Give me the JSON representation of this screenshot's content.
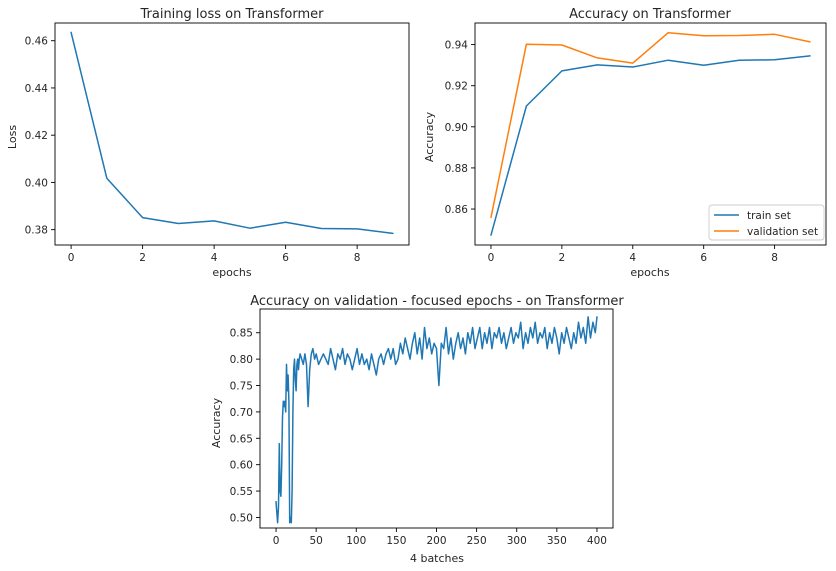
{
  "chart_data": [
    {
      "type": "line",
      "title": "Training loss on Transformer",
      "xlabel": "epochs",
      "ylabel": "Loss",
      "xlim": [
        -0.45,
        9.45
      ],
      "ylim": [
        0.3735,
        0.4675
      ],
      "xticks": [
        0,
        2,
        4,
        6,
        8
      ],
      "xtick_labels": [
        "0",
        "2",
        "4",
        "6",
        "8"
      ],
      "yticks": [
        0.38,
        0.4,
        0.42,
        0.44,
        0.46
      ],
      "ytick_labels": [
        "0.38",
        "0.40",
        "0.42",
        "0.44",
        "0.46"
      ],
      "legend": null,
      "grid": false,
      "x": [
        0,
        1,
        2,
        3,
        4,
        5,
        6,
        7,
        8,
        9
      ],
      "series": [
        {
          "values": [
            0.4635,
            0.4018,
            0.3851,
            0.3826,
            0.3837,
            0.3806,
            0.3831,
            0.3805,
            0.3803,
            0.3784
          ],
          "color": "#1f77b4"
        }
      ]
    },
    {
      "type": "line",
      "title": "Accuracy on Transformer",
      "xlabel": "epochs",
      "ylabel": "Accuracy",
      "xlim": [
        -0.45,
        9.45
      ],
      "ylim": [
        0.8425,
        0.9505
      ],
      "xticks": [
        0,
        2,
        4,
        6,
        8
      ],
      "xtick_labels": [
        "0",
        "2",
        "4",
        "6",
        "8"
      ],
      "yticks": [
        0.86,
        0.88,
        0.9,
        0.92,
        0.94
      ],
      "ytick_labels": [
        "0.86",
        "0.88",
        "0.90",
        "0.92",
        "0.94"
      ],
      "legend": "lower-right",
      "grid": false,
      "x": [
        0,
        1,
        2,
        3,
        4,
        5,
        6,
        7,
        8,
        9
      ],
      "series": [
        {
          "name": "train set",
          "values": [
            0.8473,
            0.9101,
            0.9272,
            0.9301,
            0.9291,
            0.9324,
            0.9299,
            0.9324,
            0.9326,
            0.9345
          ],
          "color": "#1f77b4"
        },
        {
          "name": "validation set",
          "values": [
            0.856,
            0.9402,
            0.9398,
            0.9335,
            0.931,
            0.9458,
            0.9443,
            0.9444,
            0.945,
            0.9413
          ],
          "color": "#ff7f0e"
        }
      ]
    },
    {
      "type": "line",
      "title": "Accuracy on validation - focused epochs - on Transformer",
      "xlabel": "4 batches",
      "ylabel": "Accuracy",
      "xlim": [
        -20,
        420
      ],
      "ylim": [
        0.48,
        0.895
      ],
      "xticks": [
        0,
        50,
        100,
        150,
        200,
        250,
        300,
        350,
        400
      ],
      "xtick_labels": [
        "0",
        "50",
        "100",
        "150",
        "200",
        "250",
        "300",
        "350",
        "400"
      ],
      "yticks": [
        0.5,
        0.55,
        0.6,
        0.65,
        0.7,
        0.75,
        0.8,
        0.85
      ],
      "ytick_labels": [
        "0.50",
        "0.55",
        "0.60",
        "0.65",
        "0.70",
        "0.75",
        "0.80",
        "0.85"
      ],
      "legend": null,
      "grid": false,
      "color": "#1f77b4",
      "points": [
        [
          0,
          0.53
        ],
        [
          1,
          0.51
        ],
        [
          2,
          0.49
        ],
        [
          3,
          0.52
        ],
        [
          4,
          0.64
        ],
        [
          5,
          0.55
        ],
        [
          6,
          0.54
        ],
        [
          7,
          0.6
        ],
        [
          8,
          0.69
        ],
        [
          9,
          0.72
        ],
        [
          10,
          0.71
        ],
        [
          11,
          0.72
        ],
        [
          12,
          0.7
        ],
        [
          13,
          0.79
        ],
        [
          14,
          0.74
        ],
        [
          15,
          0.77
        ],
        [
          16,
          0.72
        ],
        [
          17,
          0.49
        ],
        [
          18,
          0.5
        ],
        [
          19,
          0.49
        ],
        [
          20,
          0.55
        ],
        [
          21,
          0.7
        ],
        [
          22,
          0.78
        ],
        [
          23,
          0.8
        ],
        [
          24,
          0.76
        ],
        [
          25,
          0.74
        ],
        [
          26,
          0.79
        ],
        [
          27,
          0.8
        ],
        [
          28,
          0.78
        ],
        [
          29,
          0.8
        ],
        [
          30,
          0.81
        ],
        [
          32,
          0.8
        ],
        [
          34,
          0.79
        ],
        [
          36,
          0.81
        ],
        [
          38,
          0.79
        ],
        [
          40,
          0.71
        ],
        [
          42,
          0.78
        ],
        [
          44,
          0.81
        ],
        [
          46,
          0.82
        ],
        [
          48,
          0.8
        ],
        [
          50,
          0.81
        ],
        [
          53,
          0.79
        ],
        [
          56,
          0.8
        ],
        [
          59,
          0.81
        ],
        [
          62,
          0.8
        ],
        [
          65,
          0.79
        ],
        [
          68,
          0.82
        ],
        [
          71,
          0.8
        ],
        [
          74,
          0.78
        ],
        [
          77,
          0.81
        ],
        [
          80,
          0.8
        ],
        [
          83,
          0.82
        ],
        [
          86,
          0.79
        ],
        [
          89,
          0.81
        ],
        [
          92,
          0.8
        ],
        [
          95,
          0.78
        ],
        [
          98,
          0.8
        ],
        [
          101,
          0.82
        ],
        [
          104,
          0.79
        ],
        [
          107,
          0.81
        ],
        [
          110,
          0.79
        ],
        [
          113,
          0.8
        ],
        [
          116,
          0.78
        ],
        [
          119,
          0.81
        ],
        [
          122,
          0.79
        ],
        [
          125,
          0.77
        ],
        [
          128,
          0.8
        ],
        [
          131,
          0.81
        ],
        [
          134,
          0.79
        ],
        [
          137,
          0.81
        ],
        [
          140,
          0.82
        ],
        [
          143,
          0.8
        ],
        [
          146,
          0.82
        ],
        [
          149,
          0.79
        ],
        [
          152,
          0.8
        ],
        [
          155,
          0.83
        ],
        [
          158,
          0.81
        ],
        [
          161,
          0.84
        ],
        [
          164,
          0.82
        ],
        [
          167,
          0.8
        ],
        [
          170,
          0.83
        ],
        [
          173,
          0.85
        ],
        [
          176,
          0.81
        ],
        [
          179,
          0.84
        ],
        [
          182,
          0.8
        ],
        [
          185,
          0.86
        ],
        [
          188,
          0.82
        ],
        [
          191,
          0.84
        ],
        [
          194,
          0.81
        ],
        [
          197,
          0.83
        ],
        [
          200,
          0.82
        ],
        [
          203,
          0.75
        ],
        [
          206,
          0.83
        ],
        [
          209,
          0.82
        ],
        [
          212,
          0.86
        ],
        [
          215,
          0.81
        ],
        [
          218,
          0.84
        ],
        [
          221,
          0.8
        ],
        [
          224,
          0.83
        ],
        [
          227,
          0.85
        ],
        [
          230,
          0.82
        ],
        [
          233,
          0.84
        ],
        [
          236,
          0.81
        ],
        [
          239,
          0.85
        ],
        [
          242,
          0.83
        ],
        [
          245,
          0.86
        ],
        [
          248,
          0.82
        ],
        [
          251,
          0.84
        ],
        [
          254,
          0.86
        ],
        [
          257,
          0.82
        ],
        [
          260,
          0.85
        ],
        [
          263,
          0.83
        ],
        [
          266,
          0.86
        ],
        [
          269,
          0.82
        ],
        [
          272,
          0.85
        ],
        [
          275,
          0.84
        ],
        [
          278,
          0.86
        ],
        [
          281,
          0.83
        ],
        [
          284,
          0.85
        ],
        [
          287,
          0.82
        ],
        [
          290,
          0.84
        ],
        [
          293,
          0.86
        ],
        [
          296,
          0.83
        ],
        [
          299,
          0.85
        ],
        [
          302,
          0.84
        ],
        [
          305,
          0.87
        ],
        [
          308,
          0.82
        ],
        [
          311,
          0.85
        ],
        [
          314,
          0.83
        ],
        [
          317,
          0.86
        ],
        [
          320,
          0.84
        ],
        [
          323,
          0.87
        ],
        [
          326,
          0.83
        ],
        [
          329,
          0.85
        ],
        [
          332,
          0.84
        ],
        [
          335,
          0.86
        ],
        [
          338,
          0.82
        ],
        [
          341,
          0.85
        ],
        [
          344,
          0.83
        ],
        [
          347,
          0.86
        ],
        [
          350,
          0.84
        ],
        [
          353,
          0.81
        ],
        [
          356,
          0.85
        ],
        [
          359,
          0.83
        ],
        [
          362,
          0.86
        ],
        [
          365,
          0.84
        ],
        [
          368,
          0.82
        ],
        [
          371,
          0.85
        ],
        [
          374,
          0.83
        ],
        [
          377,
          0.87
        ],
        [
          380,
          0.84
        ],
        [
          383,
          0.86
        ],
        [
          386,
          0.83
        ],
        [
          389,
          0.88
        ],
        [
          392,
          0.84
        ],
        [
          395,
          0.87
        ],
        [
          398,
          0.85
        ],
        [
          400,
          0.88
        ]
      ]
    }
  ]
}
